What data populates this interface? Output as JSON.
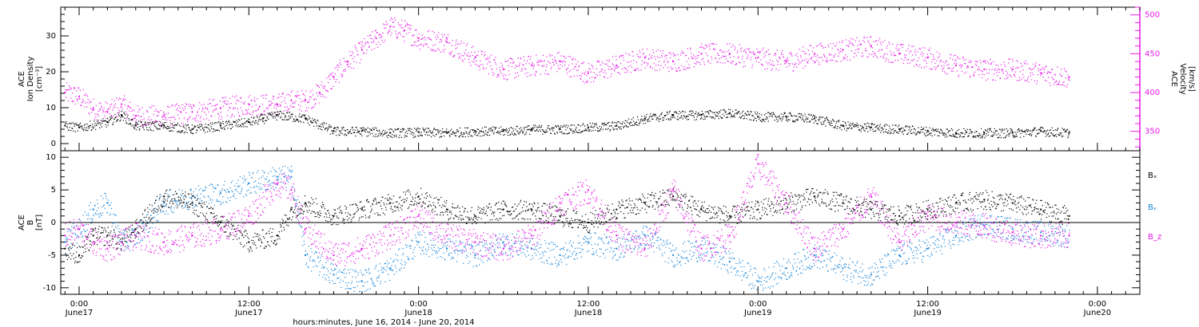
{
  "colors": {
    "black": "#000000",
    "magenta": "#e619e6",
    "blue": "#1a86d9"
  },
  "footer": {
    "xlabel": "hours:minutes, June 16, 2014 - June 20, 2014"
  },
  "x_ticks": [
    {
      "t": 0.0,
      "time": "0:00",
      "day": "June17"
    },
    {
      "t": 12.0,
      "time": "12:00",
      "day": "June17"
    },
    {
      "t": 24.0,
      "time": "0:00",
      "day": "June18"
    },
    {
      "t": 36.0,
      "time": "12:00",
      "day": "June18"
    },
    {
      "t": 48.0,
      "time": "0:00",
      "day": "June19"
    },
    {
      "t": 60.0,
      "time": "12:00",
      "day": "June19"
    },
    {
      "t": 72.0,
      "time": "0:00",
      "day": "June20"
    }
  ],
  "panels": {
    "top": {
      "ylabel_left": [
        "ACE",
        "Ion Density",
        "[cm⁻³]"
      ],
      "ylabel_right": [
        "ACE",
        "Velocity",
        "[km/s]"
      ],
      "left_ticks": [
        "0",
        "10",
        "20",
        "30"
      ],
      "right_ticks": [
        "350",
        "400",
        "450",
        "500"
      ]
    },
    "bottom": {
      "ylabel": [
        "ACE",
        "B",
        "[nT]"
      ],
      "ticks": [
        "-10",
        "-5",
        "0",
        "5",
        "10"
      ],
      "legend": [
        "Bₓ",
        "Bᵧ",
        "B_z"
      ]
    }
  },
  "chart_data": [
    {
      "type": "scatter",
      "title": "",
      "xlabel": "hours:minutes, June 16, 2014 - June 20, 2014",
      "x_unit": "hours from 2014-06-17 00:00",
      "xlim": [
        -1.3,
        75
      ],
      "ylim_left": [
        -2,
        38
      ],
      "ylim_right": [
        325,
        510
      ],
      "ylabel_left": "ACE Ion Density [cm⁻³]",
      "ylabel_right": "ACE Velocity [km/s]",
      "grid": false,
      "series": [
        {
          "axis": "left",
          "color": "#000000",
          "x": [
            -1,
            0,
            2,
            3,
            4,
            6,
            8,
            10,
            12,
            13,
            14,
            16,
            18,
            20,
            22,
            24,
            26,
            28,
            30,
            32,
            34,
            36,
            38,
            40,
            42,
            44,
            46,
            48,
            50,
            52,
            54,
            56,
            58,
            60,
            62,
            64,
            66,
            68,
            70
          ],
          "y": [
            5,
            4.5,
            6,
            8,
            5,
            5,
            4,
            5,
            6,
            7,
            8,
            7,
            3.5,
            3.5,
            3,
            3.2,
            3,
            3.5,
            3.5,
            4,
            4,
            4.5,
            5,
            7,
            8,
            8,
            8.5,
            7.5,
            7.5,
            7,
            5,
            4.5,
            4,
            3.5,
            3,
            3,
            3,
            3.5,
            3
          ]
        },
        {
          "axis": "right",
          "color": "#e619e6",
          "x": [
            -1,
            0,
            1,
            2,
            3,
            4,
            6,
            8,
            10,
            12,
            14,
            15,
            16,
            17,
            18,
            19,
            20,
            21,
            22,
            23,
            24,
            26,
            28,
            30,
            32,
            34,
            36,
            38,
            40,
            42,
            44,
            46,
            48,
            50,
            52,
            54,
            56,
            58,
            60,
            62,
            64,
            66,
            68,
            70
          ],
          "y": [
            400,
            395,
            380,
            375,
            385,
            370,
            370,
            375,
            380,
            385,
            385,
            390,
            390,
            400,
            420,
            440,
            455,
            470,
            485,
            480,
            470,
            465,
            445,
            430,
            435,
            440,
            425,
            435,
            445,
            440,
            450,
            450,
            445,
            440,
            450,
            455,
            460,
            450,
            445,
            435,
            430,
            430,
            425,
            420
          ]
        }
      ]
    },
    {
      "type": "scatter",
      "title": "",
      "xlabel": "hours:minutes, June 16, 2014 - June 20, 2014",
      "x_unit": "hours from 2014-06-17 00:00",
      "xlim": [
        -1.3,
        75
      ],
      "ylim": [
        -11,
        11
      ],
      "ylabel": "ACE B [nT]",
      "hline": 0,
      "grid": false,
      "legend_position": "right",
      "series": [
        {
          "name": "Bₓ",
          "color": "#000000",
          "x": [
            -1,
            0,
            1,
            2,
            3,
            4,
            6,
            8,
            10,
            12,
            14,
            15,
            16,
            18,
            20,
            22,
            24,
            26,
            28,
            30,
            32,
            34,
            36,
            38,
            40,
            42,
            44,
            46,
            48,
            50,
            52,
            54,
            56,
            58,
            60,
            62,
            64,
            66,
            68,
            70
          ],
          "y": [
            -4,
            -5,
            -2,
            -2,
            -3,
            -1,
            4,
            3,
            0,
            -3,
            -2,
            2,
            3,
            1,
            2,
            3,
            4,
            2,
            1,
            2,
            2,
            1,
            0,
            2,
            3,
            4,
            2,
            1,
            2,
            3,
            4,
            3,
            2,
            1,
            2,
            3,
            3.5,
            3,
            2,
            1
          ]
        },
        {
          "name": "Bᵧ",
          "color": "#1a86d9",
          "x": [
            -1,
            0,
            1,
            2,
            3,
            4,
            6,
            8,
            10,
            12,
            14,
            15,
            16,
            18,
            20,
            22,
            24,
            26,
            28,
            30,
            32,
            34,
            36,
            38,
            40,
            42,
            44,
            46,
            48,
            50,
            52,
            54,
            56,
            58,
            60,
            62,
            64,
            66,
            68,
            70
          ],
          "y": [
            -3,
            -1,
            2,
            3,
            -3,
            -2,
            3,
            4,
            4.5,
            6,
            7,
            7,
            -5,
            -8,
            -9,
            -7,
            -3,
            -4,
            -5,
            -3,
            -4,
            -5,
            -3,
            -4,
            -2,
            -5,
            -4,
            -6,
            -9,
            -7,
            -5,
            -7,
            -8,
            -5,
            -4,
            -2,
            0,
            -1,
            -1.5,
            -2
          ]
        },
        {
          "name": "B_z",
          "color": "#e619e6",
          "x": [
            -1,
            0,
            1,
            2,
            3,
            4,
            6,
            8,
            10,
            12,
            14,
            15,
            16,
            18,
            20,
            22,
            24,
            26,
            28,
            30,
            32,
            34,
            36,
            38,
            40,
            42,
            44,
            46,
            48,
            50,
            52,
            54,
            56,
            58,
            60,
            62,
            64,
            66,
            68,
            70
          ],
          "y": [
            -2,
            -1,
            -3,
            -4,
            -3,
            -2,
            -3,
            -2,
            -1,
            1,
            6,
            5,
            -1,
            -5,
            -4,
            -2,
            1,
            -2,
            -3,
            -4,
            -2,
            3,
            5,
            -2,
            -4,
            5,
            -4,
            -2,
            9,
            3,
            -4,
            -1,
            4,
            -3,
            1,
            0,
            -0.5,
            -1.5,
            -2,
            -2
          ]
        }
      ]
    }
  ]
}
